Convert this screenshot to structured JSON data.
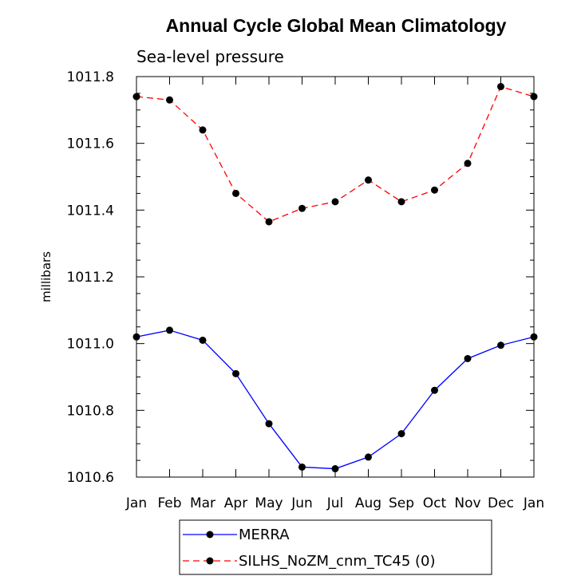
{
  "chart_data": {
    "type": "line",
    "title": "Annual Cycle Global Mean Climatology",
    "subtitle": "Sea-level pressure",
    "xlabel": "",
    "ylabel": "millibars",
    "categories": [
      "Jan",
      "Feb",
      "Mar",
      "Apr",
      "May",
      "Jun",
      "Jul",
      "Aug",
      "Sep",
      "Oct",
      "Nov",
      "Dec",
      "Jan"
    ],
    "ylim": [
      1010.6,
      1011.8
    ],
    "yticks": [
      1010.6,
      1010.8,
      1011.0,
      1011.2,
      1011.4,
      1011.6,
      1011.8
    ],
    "ytick_labels": [
      "1010.6",
      "1010.8",
      "1011.0",
      "1011.2",
      "1011.4",
      "1011.6",
      "1011.8"
    ],
    "grid": false,
    "legend_position": "bottom-center",
    "series": [
      {
        "name": "MERRA",
        "color": "#0000ff",
        "line_style": "solid",
        "marker": "circle",
        "values": [
          1011.02,
          1011.04,
          1011.01,
          1010.91,
          1010.76,
          1010.63,
          1010.625,
          1010.66,
          1010.73,
          1010.86,
          1010.955,
          1010.995,
          1011.02
        ]
      },
      {
        "name": "SILHS_NoZM_cnm_TC45 (0)",
        "color": "#ff0000",
        "line_style": "dashed",
        "marker": "circle",
        "values": [
          1011.74,
          1011.73,
          1011.64,
          1011.45,
          1011.365,
          1011.405,
          1011.425,
          1011.49,
          1011.425,
          1011.46,
          1011.54,
          1011.77,
          1011.74
        ]
      }
    ]
  }
}
